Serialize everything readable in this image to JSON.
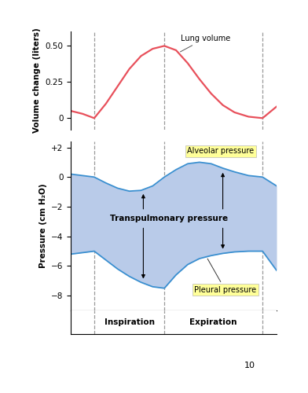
{
  "chart_data": {
    "type": "line",
    "x": [
      0,
      0.25,
      0.5,
      0.75,
      1.0,
      1.25,
      1.5,
      1.75,
      2.0,
      2.25,
      2.5,
      2.75,
      3.0,
      3.25,
      3.5,
      3.8,
      4.1,
      4.4
    ],
    "xlim": [
      0,
      4.4
    ],
    "tick_labels": "y",
    "phases": [
      {
        "label": "Inspiration",
        "start": 0.5,
        "end": 2.0
      },
      {
        "label": "Expiration",
        "start": 2.0,
        "end": 4.1
      }
    ],
    "panels": [
      {
        "ylabel": "Volume change (liters)",
        "ylim": [
          -0.08,
          0.6
        ],
        "yticks": [
          0,
          0.25,
          {
            "value": 0.5,
            "label": "0.50"
          }
        ],
        "series": [
          {
            "name": "Lung volume",
            "color": "#e8505b",
            "values": [
              0.05,
              0.03,
              0.0,
              0.1,
              0.22,
              0.34,
              0.43,
              0.48,
              0.5,
              0.47,
              0.38,
              0.27,
              0.17,
              0.09,
              0.04,
              0.01,
              0.0,
              0.08
            ]
          }
        ]
      },
      {
        "ylabel": "Pressure (cm H₂O)",
        "ylim": [
          -9,
          2.4
        ],
        "yticks": [
          {
            "value": 2,
            "label": "+2"
          },
          0,
          {
            "value": -2,
            "label": "−2"
          },
          {
            "value": -4,
            "label": "−4"
          },
          {
            "value": -6,
            "label": "−6"
          },
          {
            "value": -8,
            "label": "−8"
          }
        ],
        "series": [
          {
            "name": "Alveolar pressure",
            "color": "#3a8fd0",
            "values": [
              0.2,
              0.1,
              0.0,
              -0.4,
              -0.75,
              -0.95,
              -0.9,
              -0.6,
              0.0,
              0.5,
              0.9,
              1.0,
              0.9,
              0.6,
              0.35,
              0.1,
              0.0,
              -0.6
            ]
          },
          {
            "name": "Pleural pressure",
            "color": "#3a8fd0",
            "values": [
              -5.2,
              -5.1,
              -5.0,
              -5.6,
              -6.2,
              -6.7,
              -7.1,
              -7.4,
              -7.5,
              -6.6,
              -5.9,
              -5.5,
              -5.3,
              -5.15,
              -5.05,
              -5.0,
              -5.0,
              -6.3
            ]
          }
        ],
        "fill_label": "Transpulmonary pressure",
        "fill_color": "#b9cbe9"
      }
    ]
  },
  "page_number": "10"
}
